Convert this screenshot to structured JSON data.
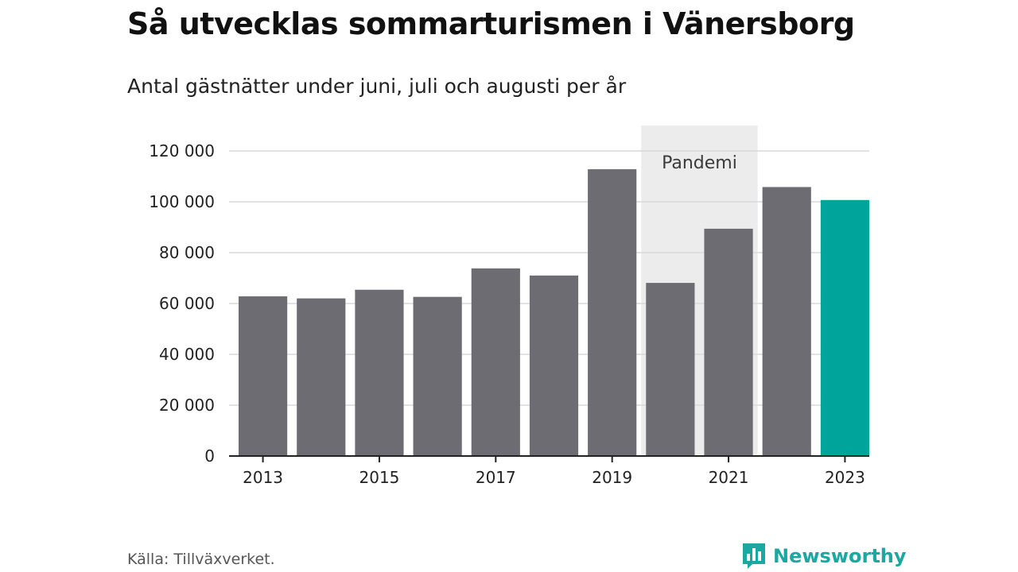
{
  "title": "Så utvecklas sommarturismen i Vänersborg",
  "subtitle": "Antal gästnätter under juni, juli och augusti per år",
  "source": "Källa: Tillväxverket.",
  "brand": {
    "name": "Newsworthy",
    "icon": "newsworthy-logo-icon",
    "color": "#1aa8a0"
  },
  "colors": {
    "bar": "#6d6c72",
    "highlight": "#00a49a",
    "band": "#ececec",
    "grid": "#d9d9d9",
    "axis": "#222222"
  },
  "chart_data": {
    "type": "bar",
    "categories": [
      "2013",
      "2014",
      "2015",
      "2016",
      "2017",
      "2018",
      "2019",
      "2020",
      "2021",
      "2022",
      "2023"
    ],
    "values": [
      62800,
      62000,
      65400,
      62600,
      73800,
      71000,
      112800,
      68100,
      89400,
      105800,
      100700
    ],
    "highlight_category": "2023",
    "x_tick_labels": [
      "2013",
      "2015",
      "2017",
      "2019",
      "2021",
      "2023"
    ],
    "y_ticks": [
      0,
      20000,
      40000,
      60000,
      80000,
      100000,
      120000
    ],
    "y_tick_labels": [
      "0",
      "20 000",
      "40 000",
      "60 000",
      "80 000",
      "100 000",
      "120 000"
    ],
    "ylim": [
      0,
      130000
    ],
    "grid": true,
    "band": {
      "label": "Pandemi",
      "from": "2020",
      "to": "2021"
    },
    "xlabel": "",
    "ylabel": ""
  }
}
